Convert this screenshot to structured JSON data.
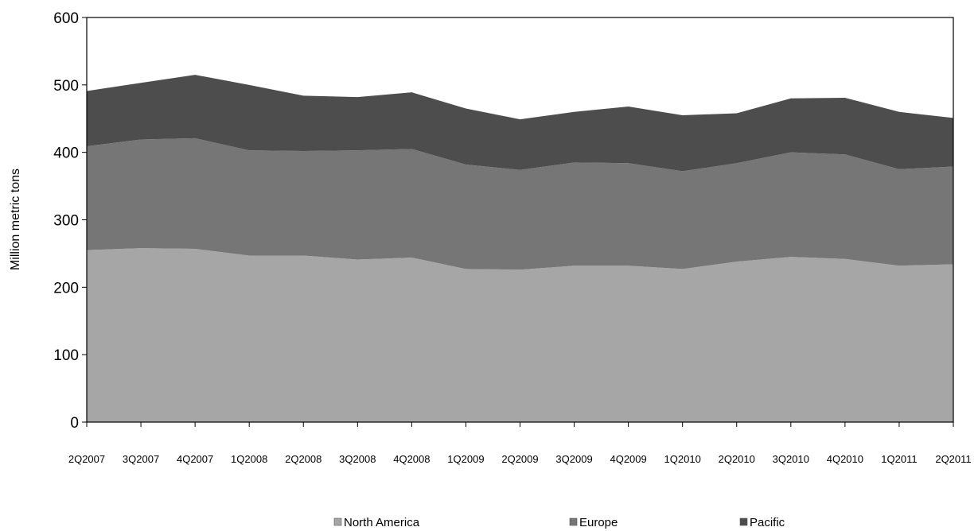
{
  "chart_data": {
    "type": "area",
    "stacked": true,
    "categories": [
      "2Q2007",
      "3Q2007",
      "4Q2007",
      "1Q2008",
      "2Q2008",
      "3Q2008",
      "4Q2008",
      "1Q2009",
      "2Q2009",
      "3Q2009",
      "4Q2009",
      "1Q2010",
      "2Q2010",
      "3Q2010",
      "4Q2010",
      "1Q2011",
      "2Q2011"
    ],
    "series": [
      {
        "name": "North America",
        "color": "#a6a6a6",
        "values": [
          255,
          258,
          257,
          247,
          247,
          241,
          244,
          227,
          226,
          232,
          232,
          227,
          238,
          245,
          242,
          232,
          234
        ]
      },
      {
        "name": "Europe",
        "color": "#767676",
        "values": [
          154,
          161,
          164,
          156,
          155,
          162,
          161,
          155,
          148,
          153,
          152,
          145,
          146,
          155,
          155,
          143,
          145
        ]
      },
      {
        "name": "Pacific",
        "color": "#4d4d4d",
        "values": [
          82,
          84,
          94,
          97,
          82,
          79,
          84,
          83,
          75,
          75,
          84,
          83,
          74,
          80,
          84,
          85,
          72
        ]
      }
    ],
    "ylabel": "Million metric tons",
    "xlabel": "",
    "ylim": [
      0,
      600
    ],
    "yticks": [
      0,
      100,
      200,
      300,
      400,
      500,
      600
    ],
    "grid": false,
    "legend_position": "bottom"
  }
}
